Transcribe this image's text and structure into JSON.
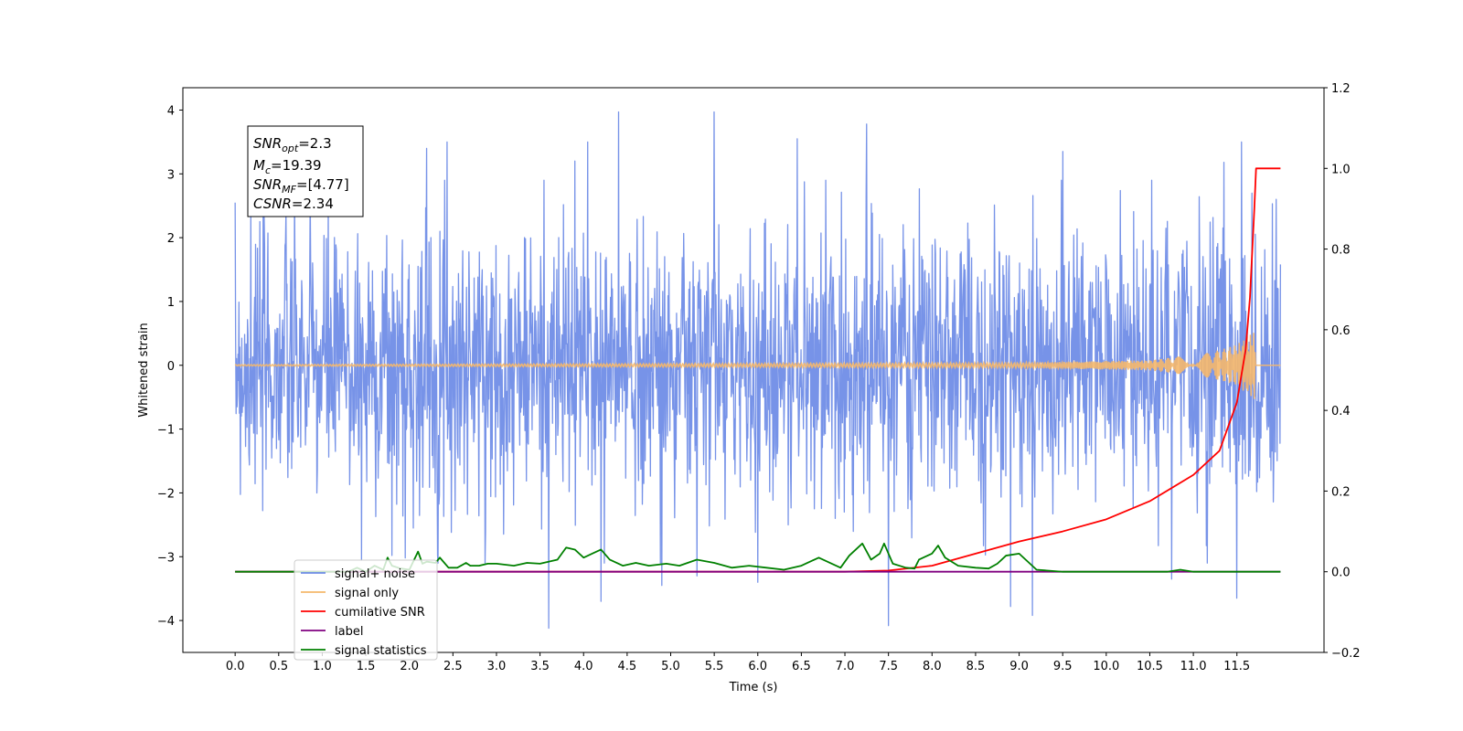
{
  "chart_data": {
    "type": "line",
    "xlabel": "Time (s)",
    "ylabel": "Whitened strain",
    "xlim": [
      -0.6,
      12.5
    ],
    "ylim": [
      -4.5,
      4.35
    ],
    "ylim_right": [
      -0.2,
      1.2
    ],
    "x_ticks": [
      "0.0",
      "0.5",
      "1.0",
      "1.5",
      "2.0",
      "2.5",
      "3.0",
      "3.5",
      "4.0",
      "4.5",
      "5.0",
      "5.5",
      "6.0",
      "6.5",
      "7.0",
      "7.5",
      "8.0",
      "8.5",
      "9.0",
      "9.5",
      "10.0",
      "10.5",
      "11.0",
      "11.5"
    ],
    "y_ticks_left": [
      "4",
      "3",
      "2",
      "1",
      "0",
      "−1",
      "−2",
      "−3",
      "−4"
    ],
    "y_ticks_right": [
      "1.2",
      "1.0",
      "0.8",
      "0.6",
      "0.4",
      "0.2",
      "0.0",
      "−0.2"
    ],
    "grid": false,
    "legend_position": "lower-left",
    "info_box": {
      "line1": {
        "main": "SNR",
        "sub": "opt",
        "rest": "=2.3"
      },
      "line2": {
        "main": "M",
        "sub": "c",
        "rest": "=19.39"
      },
      "line3": {
        "main": "SNR",
        "sub": "MF",
        "rest": "=[4.77]"
      },
      "line4": {
        "main": "CSNR",
        "sub": "",
        "rest": "=2.34"
      }
    },
    "series": [
      {
        "name": "signal+ noise",
        "color": "#6b8ae6",
        "axis": "left",
        "x_range": [
          0.0,
          12.0
        ],
        "envelope_typical": [
          -2.2,
          2.5
        ],
        "envelope_extreme": [
          -4.1,
          3.97
        ],
        "peaks": [
          [
            0.0,
            2.55
          ],
          [
            0.18,
            2.42
          ],
          [
            1.45,
            -3.05
          ],
          [
            1.8,
            -2.98
          ],
          [
            1.95,
            -3.02
          ],
          [
            2.2,
            3.4
          ],
          [
            2.43,
            3.5
          ],
          [
            3.6,
            -4.12
          ],
          [
            3.9,
            3.2
          ],
          [
            4.05,
            3.5
          ],
          [
            4.2,
            -3.7
          ],
          [
            4.4,
            3.97
          ],
          [
            4.9,
            -3.45
          ],
          [
            5.3,
            -3.3
          ],
          [
            5.5,
            3.97
          ],
          [
            6.0,
            -3.4
          ],
          [
            6.45,
            3.55
          ],
          [
            7.25,
            3.78
          ],
          [
            7.5,
            -4.08
          ],
          [
            8.9,
            -3.78
          ],
          [
            9.15,
            -3.92
          ],
          [
            9.5,
            3.35
          ],
          [
            10.75,
            -3.35
          ],
          [
            11.35,
            3.18
          ],
          [
            11.5,
            -3.65
          ],
          [
            11.55,
            3.5
          ],
          [
            11.95,
            2.6
          ]
        ]
      },
      {
        "name": "signal only",
        "color": "#f5b86b",
        "axis": "left",
        "x_range": [
          0.0,
          12.0
        ],
        "amplitude_envelope": [
          [
            0.0,
            0.01
          ],
          [
            9.0,
            0.04
          ],
          [
            10.5,
            0.08
          ],
          [
            11.2,
            0.2
          ],
          [
            11.5,
            0.32
          ],
          [
            11.7,
            0.55
          ],
          [
            11.72,
            0.0
          ]
        ]
      },
      {
        "name": "cumilative SNR",
        "color": "#ff0000",
        "axis": "right",
        "x": [
          0.0,
          7.0,
          7.5,
          8.0,
          8.5,
          9.0,
          9.5,
          10.0,
          10.5,
          11.0,
          11.3,
          11.5,
          11.6,
          11.65,
          11.7,
          11.72,
          12.0
        ],
        "y": [
          0.0,
          0.0,
          0.003,
          0.015,
          0.045,
          0.075,
          0.1,
          0.13,
          0.175,
          0.24,
          0.3,
          0.42,
          0.55,
          0.68,
          0.9,
          1.0,
          1.0
        ]
      },
      {
        "name": "label",
        "color": "#800080",
        "axis": "right",
        "x": [
          0.0,
          12.0
        ],
        "y": [
          0.0,
          0.0
        ]
      },
      {
        "name": "signal statistics",
        "color": "#008000",
        "axis": "right",
        "x": [
          0.0,
          1.3,
          1.4,
          1.5,
          1.6,
          1.7,
          1.75,
          1.8,
          1.9,
          2.0,
          2.1,
          2.15,
          2.2,
          2.3,
          2.35,
          2.45,
          2.55,
          2.65,
          2.7,
          2.8,
          2.9,
          3.0,
          3.2,
          3.35,
          3.5,
          3.7,
          3.8,
          3.9,
          4.0,
          4.1,
          4.2,
          4.3,
          4.45,
          4.6,
          4.75,
          4.95,
          5.1,
          5.3,
          5.5,
          5.7,
          5.9,
          6.1,
          6.3,
          6.5,
          6.7,
          6.85,
          6.95,
          7.05,
          7.2,
          7.3,
          7.4,
          7.45,
          7.55,
          7.7,
          7.8,
          7.85,
          8.0,
          8.07,
          8.15,
          8.3,
          8.5,
          8.65,
          8.75,
          8.85,
          9.0,
          9.2,
          9.5,
          10.0,
          10.5,
          10.7,
          10.85,
          11.0,
          12.0
        ],
        "y": [
          0.0,
          0.0,
          0.01,
          0.0,
          0.015,
          0.005,
          0.035,
          0.015,
          0.008,
          0.005,
          0.05,
          0.02,
          0.025,
          0.022,
          0.035,
          0.01,
          0.01,
          0.022,
          0.015,
          0.015,
          0.02,
          0.02,
          0.015,
          0.022,
          0.02,
          0.03,
          0.06,
          0.055,
          0.035,
          0.045,
          0.055,
          0.03,
          0.015,
          0.022,
          0.015,
          0.02,
          0.015,
          0.03,
          0.022,
          0.01,
          0.015,
          0.01,
          0.005,
          0.015,
          0.035,
          0.02,
          0.01,
          0.04,
          0.07,
          0.03,
          0.045,
          0.07,
          0.02,
          0.01,
          0.008,
          0.03,
          0.045,
          0.065,
          0.035,
          0.015,
          0.01,
          0.008,
          0.02,
          0.04,
          0.045,
          0.005,
          0.0,
          0.0,
          0.0,
          0.0,
          0.005,
          0.0,
          0.0
        ]
      }
    ]
  }
}
